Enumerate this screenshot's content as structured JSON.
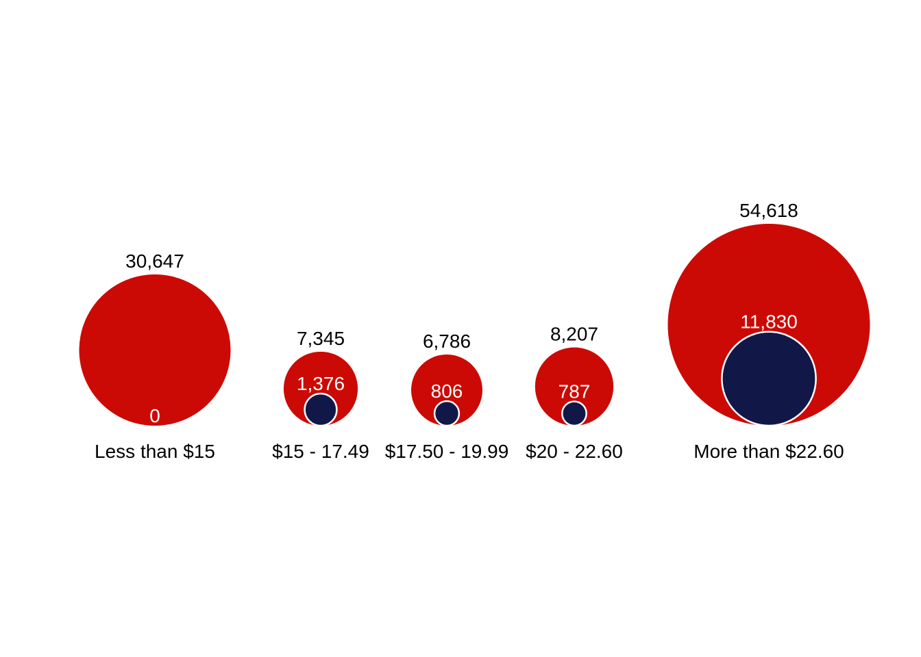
{
  "chart_data": {
    "type": "nested-bubble",
    "title": "",
    "xlabel": "",
    "ylabel": "",
    "categories": [
      "Less than $15",
      "$15 - 17.49",
      "$17.50 - 19.99",
      "$20 - 22.60",
      "More than $22.60"
    ],
    "series": [
      {
        "role": "outer",
        "color": "#cc0a05",
        "values": [
          30647,
          7345,
          6786,
          8207,
          54618
        ],
        "labels": [
          "30,647",
          "7,345",
          "6,786",
          "8,207",
          "54,618"
        ]
      },
      {
        "role": "inner",
        "color": "#111848",
        "stroke": "#ffffff",
        "values": [
          0,
          1376,
          806,
          787,
          11830
        ],
        "labels": [
          "0",
          "1,376",
          "806",
          "787",
          "11,830"
        ]
      }
    ],
    "legend": "none",
    "grid": false
  }
}
